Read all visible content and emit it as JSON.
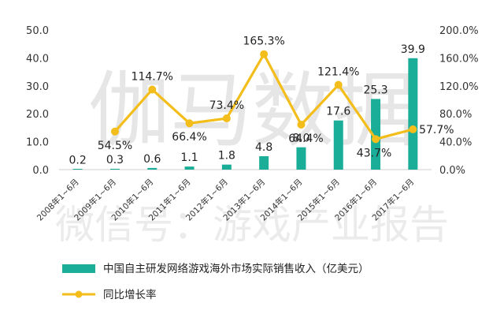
{
  "chart_data": {
    "type": "bar",
    "categories": [
      "2008年1~6月",
      "2009年1~6月",
      "2010年1~6月",
      "2011年1~6月",
      "2012年1~6月",
      "2013年1~6月",
      "2014年1~6月",
      "2015年1~6月",
      "2016年1~6月",
      "2017年1~6月"
    ],
    "series": [
      {
        "name": "中国自主研发网络游戏海外市场实际销售收入（亿美元）",
        "type": "bar",
        "axis": "left",
        "values": [
          0.2,
          0.3,
          0.6,
          1.1,
          1.8,
          4.8,
          8.0,
          17.6,
          25.3,
          39.9
        ],
        "value_labels": [
          "0.2",
          "0.3",
          "0.6",
          "1.1",
          "1.8",
          "4.8",
          "8.0",
          "17.6",
          "25.3",
          "39.9"
        ],
        "color": "#1aae98"
      },
      {
        "name": "同比增长率",
        "type": "line",
        "axis": "right",
        "values": [
          null,
          54.5,
          114.7,
          66.4,
          73.4,
          165.3,
          64.4,
          121.4,
          43.7,
          57.7
        ],
        "value_labels": [
          "",
          "54.5%",
          "114.7%",
          "66.4%",
          "73.4%",
          "165.3%",
          "64.4%",
          "121.4%",
          "43.7%",
          "57.7%"
        ],
        "color": "#f3bd1b"
      }
    ],
    "ylim_left": [
      0,
      50
    ],
    "yticks_left": [
      "0.0",
      "10.0",
      "20.0",
      "30.0",
      "40.0",
      "50.0"
    ],
    "ylim_right": [
      0,
      200
    ],
    "yticks_right": [
      "0.0%",
      "40.0%",
      "80.0%",
      "120.0%",
      "160.0%",
      "200.0%"
    ],
    "grid": false,
    "legend_position": "bottom-left"
  },
  "watermark": {
    "line1": "伽马数据",
    "line2": "微信号：游戏产业报告"
  }
}
